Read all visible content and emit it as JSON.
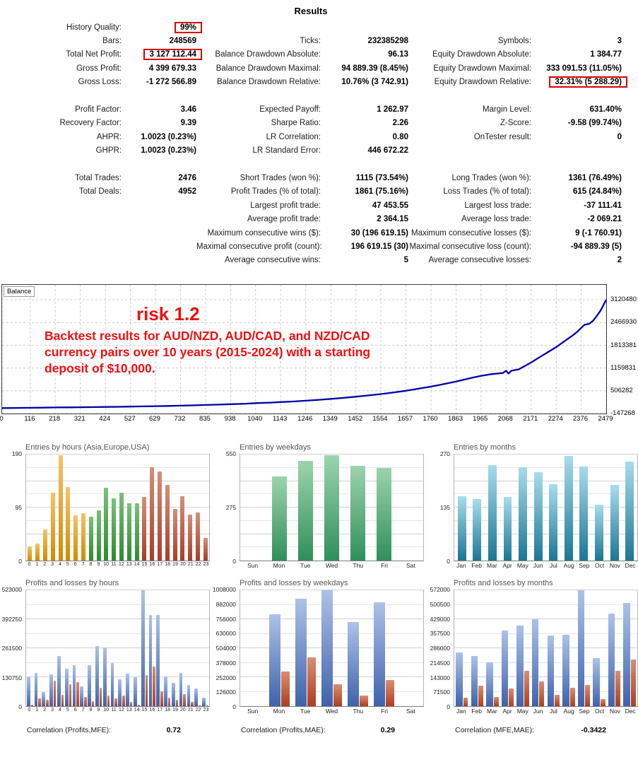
{
  "page": {
    "title": "Results"
  },
  "stats": {
    "rows": [
      [
        {
          "l": "History Quality:",
          "v": "99%",
          "box": true
        },
        null,
        null
      ],
      [
        {
          "l": "Bars:",
          "v": "248569"
        },
        {
          "l": "Ticks:",
          "v": "232385298"
        },
        {
          "l": "Symbols:",
          "v": "3"
        }
      ],
      [
        {
          "l": "Total Net Profit:",
          "v": "3 127 112.44",
          "box": true
        },
        {
          "l": "Balance Drawdown Absolute:",
          "v": "96.13"
        },
        {
          "l": "Equity Drawdown Absolute:",
          "v": "1 384.77"
        }
      ],
      [
        {
          "l": "Gross Profit:",
          "v": "4 399 679.33"
        },
        {
          "l": "Balance Drawdown Maximal:",
          "v": "94 889.39 (8.45%)"
        },
        {
          "l": "Equity Drawdown Maximal:",
          "v": "333 091.53 (11.05%)"
        }
      ],
      [
        {
          "l": "Gross Loss:",
          "v": "-1 272 566.89"
        },
        {
          "l": "Balance Drawdown Relative:",
          "v": "10.76% (3 742.91)"
        },
        {
          "l": "Equity Drawdown Relative:",
          "v": "32.31% (5 288.29)",
          "box": true
        }
      ],
      null,
      [
        {
          "l": "Profit Factor:",
          "v": "3.46"
        },
        {
          "l": "Expected Payoff:",
          "v": "1 262.97"
        },
        {
          "l": "Margin Level:",
          "v": "631.40%"
        }
      ],
      [
        {
          "l": "Recovery Factor:",
          "v": "9.39"
        },
        {
          "l": "Sharpe Ratio:",
          "v": "2.26"
        },
        {
          "l": "Z-Score:",
          "v": "-9.58 (99.74%)"
        }
      ],
      [
        {
          "l": "AHPR:",
          "v": "1.0023 (0.23%)"
        },
        {
          "l": "LR Correlation:",
          "v": "0.80"
        },
        {
          "l": "OnTester result:",
          "v": "0"
        }
      ],
      [
        {
          "l": "GHPR:",
          "v": "1.0023 (0.23%)"
        },
        {
          "l": "LR Standard Error:",
          "v": "446 672.22"
        },
        null
      ],
      null,
      [
        {
          "l": "Total Trades:",
          "v": "2476"
        },
        {
          "l": "Short Trades (won %):",
          "v": "1115 (73.54%)"
        },
        {
          "l": "Long Trades (won %):",
          "v": "1361 (76.49%)"
        }
      ],
      [
        {
          "l": "Total Deals:",
          "v": "4952"
        },
        {
          "l": "Profit Trades (% of total):",
          "v": "1861 (75.16%)"
        },
        {
          "l": "Loss Trades (% of total):",
          "v": "615 (24.84%)"
        }
      ],
      [
        null,
        {
          "l": "Largest profit trade:",
          "v": "47 453.55"
        },
        {
          "l": "Largest loss trade:",
          "v": "-37 111.41"
        }
      ],
      [
        null,
        {
          "l": "Average profit trade:",
          "v": "2 364.15"
        },
        {
          "l": "Average loss trade:",
          "v": "-2 069.21"
        }
      ],
      [
        null,
        {
          "l": "Maximum consecutive wins ($):",
          "v": "30 (196 619.15)"
        },
        {
          "l": "Maximum consecutive losses ($):",
          "v": "9 (-1 760.91)"
        }
      ],
      [
        null,
        {
          "l": "Maximal consecutive profit (count):",
          "v": "196 619.15 (30)"
        },
        {
          "l": "Maximal consecutive loss (count):",
          "v": "-94 889.39 (5)"
        }
      ],
      [
        null,
        {
          "l": "Average consecutive wins:",
          "v": "5"
        },
        {
          "l": "Average consecutive losses:",
          "v": "2"
        }
      ]
    ]
  },
  "chart_data": [
    {
      "id": "balance",
      "type": "line",
      "legend": "Balance",
      "xlim": [
        0,
        2479
      ],
      "ylim": [
        -147268,
        3550000
      ],
      "x_ticks": [
        0,
        116,
        218,
        321,
        424,
        527,
        629,
        732,
        835,
        938,
        1040,
        1143,
        1246,
        1349,
        1452,
        1554,
        1657,
        1760,
        1863,
        1965,
        2068,
        2171,
        2274,
        2376,
        2479
      ],
      "y_ticks": [
        {
          "value": 3120480,
          "label": "3120480"
        },
        {
          "value": 2466930,
          "label": "2466930"
        },
        {
          "value": 1813381,
          "label": "1813381"
        },
        {
          "value": 1159831,
          "label": "1159831"
        },
        {
          "value": 506282,
          "label": "506282"
        },
        {
          "value": -147268,
          "label": "-147268"
        }
      ],
      "series": [
        {
          "name": "Balance",
          "color": "#0000a8",
          "points": [
            [
              0,
              10000
            ],
            [
              60,
              14000
            ],
            [
              116,
              18000
            ],
            [
              170,
              21000
            ],
            [
              218,
              27000
            ],
            [
              280,
              29000
            ],
            [
              321,
              33000
            ],
            [
              380,
              37000
            ],
            [
              424,
              41000
            ],
            [
              480,
              46000
            ],
            [
              527,
              51000
            ],
            [
              580,
              57000
            ],
            [
              629,
              63000
            ],
            [
              680,
              71000
            ],
            [
              732,
              79000
            ],
            [
              790,
              89000
            ],
            [
              835,
              99000
            ],
            [
              890,
              109000
            ],
            [
              938,
              121000
            ],
            [
              1000,
              136000
            ],
            [
              1040,
              151000
            ],
            [
              1100,
              166000
            ],
            [
              1143,
              181000
            ],
            [
              1200,
              201000
            ],
            [
              1246,
              221000
            ],
            [
              1300,
              246000
            ],
            [
              1349,
              273000
            ],
            [
              1400,
              301000
            ],
            [
              1452,
              336000
            ],
            [
              1500,
              371000
            ],
            [
              1554,
              411000
            ],
            [
              1600,
              451000
            ],
            [
              1657,
              506000
            ],
            [
              1700,
              556000
            ],
            [
              1760,
              626000
            ],
            [
              1800,
              681000
            ],
            [
              1863,
              771000
            ],
            [
              1900,
              831000
            ],
            [
              1935,
              891000
            ],
            [
              1965,
              936000
            ],
            [
              2000,
              976000
            ],
            [
              2030,
              1001000
            ],
            [
              2055,
              1016000
            ],
            [
              2068,
              1082000
            ],
            [
              2078,
              1002000
            ],
            [
              2090,
              1082000
            ],
            [
              2120,
              1122000
            ],
            [
              2171,
              1322000
            ],
            [
              2220,
              1532000
            ],
            [
              2274,
              1762000
            ],
            [
              2310,
              1942000
            ],
            [
              2340,
              2092000
            ],
            [
              2360,
              2202000
            ],
            [
              2376,
              2312000
            ],
            [
              2390,
              2402000
            ],
            [
              2410,
              2432000
            ],
            [
              2425,
              2522000
            ],
            [
              2440,
              2652000
            ],
            [
              2455,
              2802000
            ],
            [
              2465,
              2932000
            ],
            [
              2472,
              3032000
            ],
            [
              2479,
              3120480
            ]
          ]
        }
      ],
      "annotation": {
        "heading": "risk 1.2",
        "lines": [
          "Backtest results for AUD/NZD, AUD/CAD, and NZD/CAD",
          "currency pairs over 10 years (2015-2024) with a starting",
          "deposit of $10,000."
        ],
        "color": "#ee1111"
      }
    },
    {
      "id": "entries_by_hours",
      "type": "bar",
      "title": "Entries by hours (Asia,Europe,USA)",
      "ymax": 190,
      "divisions": 8,
      "small_x": true,
      "y_ticks": [
        {
          "value": 190,
          "label": "190"
        },
        {
          "value": 95,
          "label": "95"
        },
        {
          "value": 0,
          "label": "0"
        }
      ],
      "categories": [
        "0",
        "1",
        "2",
        "3",
        "4",
        "5",
        "6",
        "7",
        "8",
        "9",
        "10",
        "11",
        "12",
        "13",
        "14",
        "15",
        "16",
        "17",
        "18",
        "19",
        "20",
        "21",
        "22",
        "23"
      ],
      "series": [
        {
          "name": "entries",
          "values": [
            25,
            31,
            56,
            122,
            189,
            132,
            81,
            85,
            78,
            90,
            130,
            111,
            122,
            103,
            103,
            114,
            167,
            160,
            135,
            92,
            115,
            83,
            86,
            41
          ]
        }
      ],
      "color_segments": [
        {
          "from": 0,
          "to": 7,
          "top": "#f4c468",
          "bottom": "#d18a00"
        },
        {
          "from": 8,
          "to": 14,
          "top": "#79c279",
          "bottom": "#2e8b2e"
        },
        {
          "from": 15,
          "to": 23,
          "top": "#d49078",
          "bottom": "#a83c28"
        }
      ]
    },
    {
      "id": "entries_by_weekdays",
      "type": "bar",
      "title": "Entries by weekdays",
      "ymax": 550,
      "divisions": 8,
      "y_ticks": [
        {
          "value": 550,
          "label": "550"
        },
        {
          "value": 275,
          "label": "275"
        },
        {
          "value": 0,
          "label": "0"
        }
      ],
      "categories": [
        "Sun",
        "Mon",
        "Tue",
        "Wed",
        "Thu",
        "Fri",
        "Sat"
      ],
      "series": [
        {
          "name": "entries",
          "top": "#9cd4ad",
          "bottom": "#2f8f5a",
          "values": [
            0,
            438,
            519,
            548,
            492,
            480,
            0
          ]
        }
      ]
    },
    {
      "id": "entries_by_months",
      "type": "bar",
      "title": "Entries by months",
      "ymax": 270,
      "divisions": 8,
      "y_ticks": [
        {
          "value": 270,
          "label": "270"
        },
        {
          "value": 135,
          "label": "135"
        },
        {
          "value": 0,
          "label": "0"
        }
      ],
      "categories": [
        "Jan",
        "Feb",
        "Mar",
        "Apr",
        "May",
        "Jun",
        "Jul",
        "Aug",
        "Sep",
        "Oct",
        "Nov",
        "Dec"
      ],
      "series": [
        {
          "name": "entries",
          "top": "#a8dcec",
          "bottom": "#1b7694",
          "values": [
            164,
            156,
            243,
            162,
            237,
            225,
            194,
            266,
            239,
            142,
            192,
            252
          ]
        }
      ]
    },
    {
      "id": "pl_by_hours",
      "type": "bar",
      "title": "Profits and losses by hours",
      "ymax": 523000,
      "divisions": 8,
      "small_x": true,
      "y_ticks": [
        {
          "value": 523000,
          "label": "523000"
        },
        {
          "value": 392250,
          "label": "392250"
        },
        {
          "value": 261500,
          "label": "261500"
        },
        {
          "value": 130750,
          "label": "130750"
        },
        {
          "value": 0,
          "label": "0"
        }
      ],
      "categories": [
        "0",
        "1",
        "2",
        "3",
        "4",
        "5",
        "6",
        "7",
        "8",
        "9",
        "10",
        "11",
        "12",
        "13",
        "14",
        "15",
        "16",
        "17",
        "18",
        "19",
        "20",
        "21",
        "22",
        "23"
      ],
      "series": [
        {
          "name": "profit",
          "top": "#adc2e8",
          "bottom": "#3e62ac",
          "values": [
            130000,
            150000,
            65000,
            145000,
            225000,
            170000,
            185000,
            90000,
            185000,
            270000,
            265000,
            195000,
            120000,
            148000,
            130000,
            523000,
            410000,
            410000,
            135000,
            105000,
            150000,
            95000,
            80000,
            38000
          ]
        },
        {
          "name": "loss",
          "top": "#d98e72",
          "bottom": "#ad3f1f",
          "values": [
            8000,
            35000,
            30000,
            115000,
            52000,
            100000,
            110000,
            42000,
            22000,
            82000,
            47000,
            35000,
            48000,
            18000,
            8000,
            140000,
            178000,
            68000,
            38000,
            28000,
            55000,
            20000,
            3000,
            3000
          ]
        }
      ]
    },
    {
      "id": "pl_by_weekdays",
      "type": "bar",
      "title": "Profits and losses by weekdays",
      "ymax": 1008000,
      "divisions": 8,
      "y_ticks": [
        {
          "value": 1008000,
          "label": "1008000"
        },
        {
          "value": 882000,
          "label": "882000"
        },
        {
          "value": 756000,
          "label": "756000"
        },
        {
          "value": 630000,
          "label": "630000"
        },
        {
          "value": 504000,
          "label": "504000"
        },
        {
          "value": 378000,
          "label": "378000"
        },
        {
          "value": 252000,
          "label": "252000"
        },
        {
          "value": 126000,
          "label": "126000"
        },
        {
          "value": 0,
          "label": "0"
        }
      ],
      "categories": [
        "Sun",
        "Mon",
        "Tue",
        "Wed",
        "Thu",
        "Fri",
        "Sat"
      ],
      "series": [
        {
          "name": "profit",
          "top": "#adc2e8",
          "bottom": "#3e62ac",
          "values": [
            0,
            801000,
            936000,
            1008000,
            731000,
            905000,
            0
          ]
        },
        {
          "name": "loss",
          "top": "#d98e72",
          "bottom": "#ad3f1f",
          "values": [
            0,
            301000,
            424000,
            190000,
            91000,
            229000,
            0
          ]
        }
      ]
    },
    {
      "id": "pl_by_months",
      "type": "bar",
      "title": "Profits and losses by months",
      "ymax": 572000,
      "divisions": 8,
      "y_ticks": [
        {
          "value": 572000,
          "label": "572000"
        },
        {
          "value": 500500,
          "label": "500500"
        },
        {
          "value": 429000,
          "label": "429000"
        },
        {
          "value": 357500,
          "label": "357500"
        },
        {
          "value": 286000,
          "label": "286000"
        },
        {
          "value": 214500,
          "label": "214500"
        },
        {
          "value": 143000,
          "label": "143000"
        },
        {
          "value": 71500,
          "label": "71500"
        },
        {
          "value": 0,
          "label": "0"
        }
      ],
      "categories": [
        "Jan",
        "Feb",
        "Mar",
        "Apr",
        "May",
        "Jun",
        "Jul",
        "Aug",
        "Sep",
        "Oct",
        "Nov",
        "Dec"
      ],
      "series": [
        {
          "name": "profit",
          "top": "#adc2e8",
          "bottom": "#3e62ac",
          "values": [
            265000,
            247000,
            216000,
            375000,
            397000,
            428000,
            348000,
            352000,
            572000,
            238000,
            456000,
            510000
          ]
        },
        {
          "name": "loss",
          "top": "#d98e72",
          "bottom": "#ad3f1f",
          "values": [
            43000,
            103000,
            46000,
            88000,
            176000,
            123000,
            57000,
            92000,
            104000,
            35000,
            174000,
            229000
          ]
        }
      ]
    }
  ],
  "correlations": [
    {
      "label": "Correlation (Profits,MFE):",
      "value": "0.72"
    },
    {
      "label": "Correlation (Profits,MAE):",
      "value": "0.29"
    },
    {
      "label": "Correlation (MFE,MAE):",
      "value": "-0.3422"
    }
  ],
  "colors": {
    "highlight_box": "#dd0000",
    "balance_line": "#0000a8",
    "annotation": "#ee1111"
  }
}
